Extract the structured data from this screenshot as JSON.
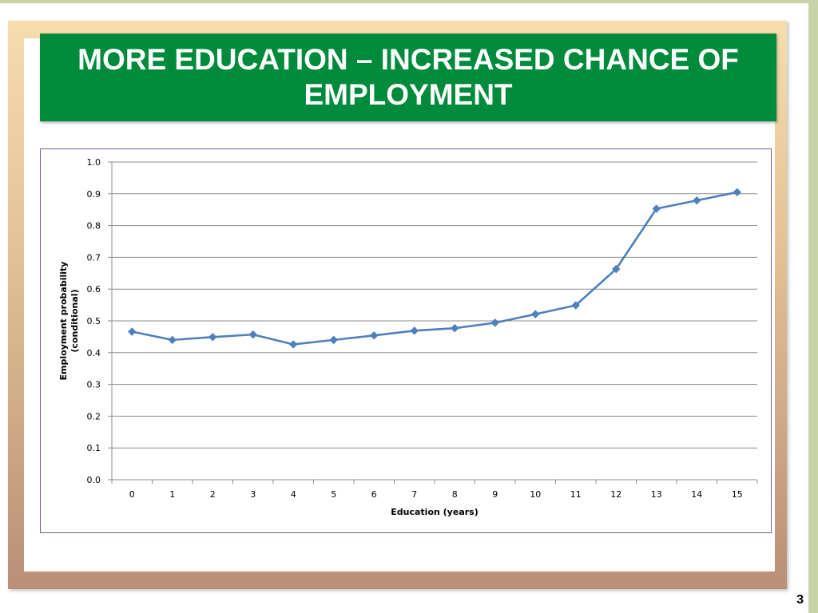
{
  "slide": {
    "title": "MORE EDUCATION – INCREASED CHANCE OF EMPLOYMENT",
    "page_number": "3"
  },
  "colors": {
    "title_background": "#008a3b",
    "series_line": "#4f7fbd",
    "chart_border": "#7b5a9a"
  },
  "chart_data": {
    "type": "line",
    "xlabel": "Education (years)",
    "ylabel": "Employment probability (conditional)",
    "ylim": [
      0.0,
      1.0
    ],
    "yticks": [
      "0.0",
      "0.1",
      "0.2",
      "0.3",
      "0.4",
      "0.5",
      "0.6",
      "0.7",
      "0.8",
      "0.9",
      "1.0"
    ],
    "x": [
      0,
      1,
      2,
      3,
      4,
      5,
      6,
      7,
      8,
      9,
      10,
      11,
      12,
      13,
      14,
      15
    ],
    "series": [
      {
        "values": [
          0.466,
          0.44,
          0.449,
          0.457,
          0.426,
          0.44,
          0.454,
          0.469,
          0.477,
          0.494,
          0.521,
          0.549,
          0.663,
          0.853,
          0.879,
          0.905
        ]
      }
    ],
    "grid": true,
    "marker": "diamond"
  }
}
